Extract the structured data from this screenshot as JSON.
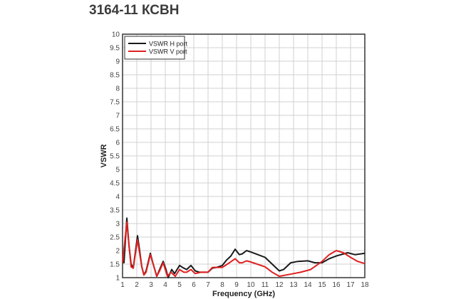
{
  "chart_data": {
    "type": "line",
    "title": "3164-11 КСВН",
    "xlabel": "Frequency (GHz)",
    "ylabel": "VSWR",
    "xlim": [
      1,
      18
    ],
    "ylim": [
      1,
      10
    ],
    "xticks": [
      "1",
      "2",
      "3",
      "4",
      "5",
      "6",
      "7",
      "8",
      "9",
      "10",
      "11",
      "12",
      "13",
      "14",
      "15",
      "16",
      "17",
      "18"
    ],
    "yticks": [
      "1",
      "1.5",
      "2",
      "2.5",
      "3",
      "3.5",
      "4",
      "4.5",
      "5",
      "5.5",
      "6",
      "6.5",
      "7",
      "7.5",
      "8",
      "8.5",
      "9",
      "9.5",
      "10"
    ],
    "grid": true,
    "legend_position": "top-left",
    "series": [
      {
        "name": "VSWR H port",
        "color": "#1a1a1a",
        "points": [
          [
            1,
            1.6
          ],
          [
            1.1,
            1.55
          ],
          [
            1.3,
            3.2
          ],
          [
            1.45,
            2.2
          ],
          [
            1.6,
            1.5
          ],
          [
            1.75,
            1.35
          ],
          [
            2.05,
            2.55
          ],
          [
            2.2,
            2.0
          ],
          [
            2.35,
            1.4
          ],
          [
            2.5,
            1.1
          ],
          [
            2.65,
            1.25
          ],
          [
            2.95,
            1.9
          ],
          [
            3.15,
            1.5
          ],
          [
            3.4,
            1.05
          ],
          [
            3.6,
            1.3
          ],
          [
            3.85,
            1.6
          ],
          [
            4.05,
            1.3
          ],
          [
            4.2,
            1.0
          ],
          [
            4.45,
            1.3
          ],
          [
            4.65,
            1.15
          ],
          [
            5.0,
            1.45
          ],
          [
            5.3,
            1.35
          ],
          [
            5.5,
            1.3
          ],
          [
            5.8,
            1.45
          ],
          [
            6.1,
            1.25
          ],
          [
            6.4,
            1.2
          ],
          [
            6.7,
            1.2
          ],
          [
            7,
            1.2
          ],
          [
            7.3,
            1.35
          ],
          [
            7.6,
            1.38
          ],
          [
            8,
            1.45
          ],
          [
            8.3,
            1.65
          ],
          [
            8.6,
            1.8
          ],
          [
            8.9,
            2.05
          ],
          [
            9.2,
            1.85
          ],
          [
            9.4,
            1.88
          ],
          [
            9.7,
            2.0
          ],
          [
            10,
            1.95
          ],
          [
            10.5,
            1.85
          ],
          [
            11,
            1.75
          ],
          [
            11.5,
            1.5
          ],
          [
            12,
            1.25
          ],
          [
            12.3,
            1.3
          ],
          [
            12.8,
            1.55
          ],
          [
            13.3,
            1.6
          ],
          [
            14,
            1.62
          ],
          [
            14.5,
            1.55
          ],
          [
            15,
            1.55
          ],
          [
            15.5,
            1.7
          ],
          [
            16,
            1.8
          ],
          [
            16.8,
            1.92
          ],
          [
            17.3,
            1.85
          ],
          [
            18,
            1.9
          ]
        ]
      },
      {
        "name": "VSWR V port",
        "color": "#e02020",
        "points": [
          [
            1,
            1.55
          ],
          [
            1.3,
            3.05
          ],
          [
            1.45,
            2.2
          ],
          [
            1.6,
            1.4
          ],
          [
            1.75,
            1.35
          ],
          [
            2.05,
            2.4
          ],
          [
            2.35,
            1.4
          ],
          [
            2.5,
            1.1
          ],
          [
            2.65,
            1.2
          ],
          [
            2.95,
            1.85
          ],
          [
            3.15,
            1.5
          ],
          [
            3.4,
            1.05
          ],
          [
            3.6,
            1.25
          ],
          [
            3.85,
            1.55
          ],
          [
            4.15,
            1.05
          ],
          [
            4.4,
            1.2
          ],
          [
            4.7,
            1.05
          ],
          [
            5.0,
            1.3
          ],
          [
            5.3,
            1.2
          ],
          [
            5.5,
            1.2
          ],
          [
            5.8,
            1.3
          ],
          [
            6.1,
            1.15
          ],
          [
            6.5,
            1.2
          ],
          [
            7,
            1.2
          ],
          [
            7.3,
            1.38
          ],
          [
            8,
            1.38
          ],
          [
            8.5,
            1.55
          ],
          [
            8.9,
            1.7
          ],
          [
            9.2,
            1.55
          ],
          [
            9.4,
            1.55
          ],
          [
            9.7,
            1.62
          ],
          [
            10,
            1.58
          ],
          [
            11,
            1.4
          ],
          [
            11.5,
            1.2
          ],
          [
            12,
            1.05
          ],
          [
            12.5,
            1.1
          ],
          [
            13,
            1.15
          ],
          [
            13.5,
            1.2
          ],
          [
            14.2,
            1.3
          ],
          [
            14.6,
            1.45
          ],
          [
            15,
            1.6
          ],
          [
            15.5,
            1.85
          ],
          [
            16,
            2.0
          ],
          [
            16.5,
            1.92
          ],
          [
            17,
            1.75
          ],
          [
            17.5,
            1.6
          ],
          [
            18,
            1.52
          ]
        ]
      }
    ]
  }
}
